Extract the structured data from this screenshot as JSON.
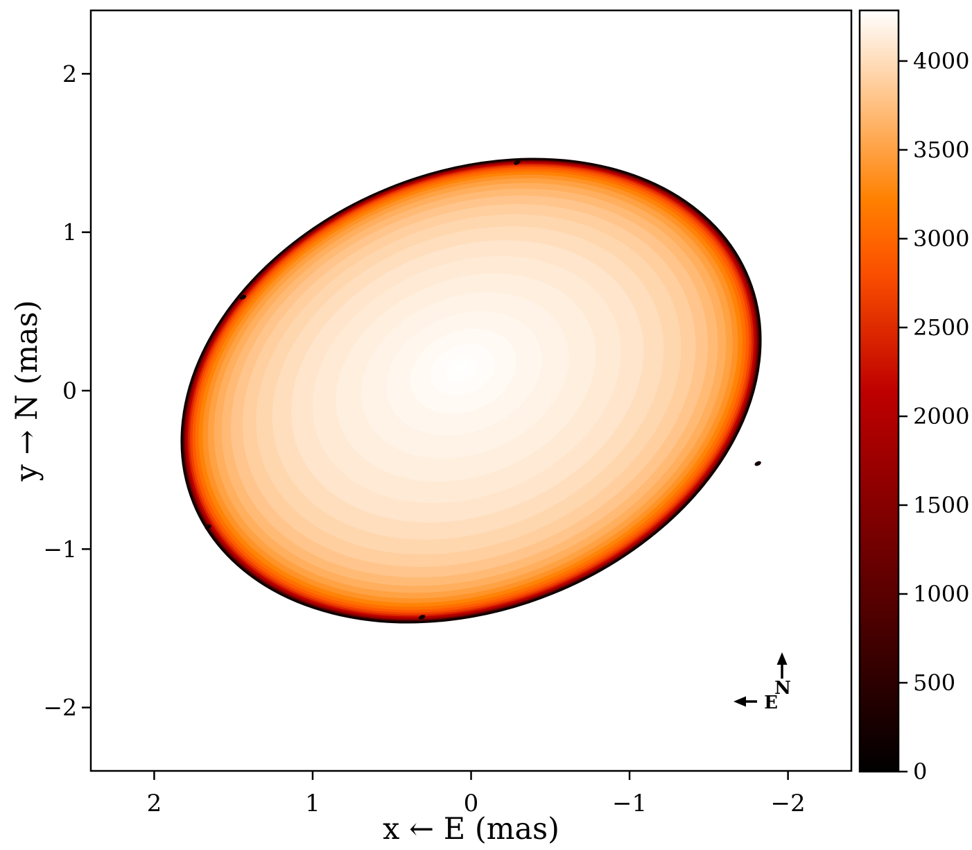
{
  "chart_data": {
    "type": "heatmap",
    "title": "",
    "xlabel": "x ← E (mas)",
    "ylabel": "y → N (mas)",
    "xlim": [
      2.4,
      -2.4
    ],
    "ylim": [
      -2.4,
      2.4
    ],
    "x_axis_inverted": true,
    "grid": false,
    "x_tick_values": [
      2,
      1,
      0,
      -1,
      -2
    ],
    "x_tick_labels": [
      "2",
      "1",
      "0",
      "−1",
      "−2"
    ],
    "y_tick_values": [
      2,
      1,
      0,
      -1,
      -2
    ],
    "y_tick_labels": [
      "2",
      "1",
      "0",
      "−1",
      "−2"
    ],
    "colormap": "gist_heat",
    "colorbar": {
      "position": "right",
      "vmin": 0,
      "vmax": 4285,
      "tick_values": [
        0,
        500,
        1000,
        1500,
        2000,
        2500,
        3000,
        3500,
        4000
      ],
      "tick_labels": [
        "0",
        "500",
        "1000",
        "1500",
        "2000",
        "2500",
        "3000",
        "3500",
        "4000"
      ]
    },
    "stellar_disk": {
      "center_mas": [
        0.0,
        0.0
      ],
      "semi_major_mas": 1.89,
      "semi_minor_mas": 1.38,
      "tilt_deg": 22,
      "peak_value": 4285,
      "edge_value": 0,
      "hotspot_offset_mas": [
        0.06,
        0.15
      ],
      "contour_levels": [
        {
          "value": 100,
          "r": 1.0
        },
        {
          "value": 700,
          "r": 0.9962
        },
        {
          "value": 1300,
          "r": 0.9922
        },
        {
          "value": 1800,
          "r": 0.9878
        },
        {
          "value": 2150,
          "r": 0.9827
        },
        {
          "value": 2450,
          "r": 0.9768
        },
        {
          "value": 2700,
          "r": 0.9698
        },
        {
          "value": 2900,
          "r": 0.9615
        },
        {
          "value": 3080,
          "r": 0.9515
        },
        {
          "value": 3240,
          "r": 0.9394
        },
        {
          "value": 3380,
          "r": 0.9246
        },
        {
          "value": 3500,
          "r": 0.9065
        },
        {
          "value": 3610,
          "r": 0.8843
        },
        {
          "value": 3710,
          "r": 0.857
        },
        {
          "value": 3800,
          "r": 0.824
        },
        {
          "value": 3880,
          "r": 0.783
        },
        {
          "value": 3950,
          "r": 0.734
        },
        {
          "value": 4010,
          "r": 0.676
        },
        {
          "value": 4065,
          "r": 0.609
        },
        {
          "value": 4110,
          "r": 0.533
        },
        {
          "value": 4150,
          "r": 0.449
        },
        {
          "value": 4185,
          "r": 0.359
        },
        {
          "value": 4215,
          "r": 0.268
        },
        {
          "value": 4240,
          "r": 0.183
        },
        {
          "value": 4260,
          "r": 0.111
        },
        {
          "value": 4275,
          "r": 0.058
        },
        {
          "value": 4285,
          "r": 0.022
        }
      ]
    },
    "rim_specks_mas": [
      [
        1.44,
        0.59
      ],
      [
        1.66,
        -0.86
      ],
      [
        0.31,
        -1.43
      ],
      [
        -0.29,
        1.44
      ],
      [
        -1.81,
        -0.46
      ]
    ],
    "compass": {
      "north_label": "N",
      "east_label": "E"
    }
  },
  "colors": {
    "background": "#ffffff",
    "axis": "#000000",
    "text": "#000000",
    "disk_outline": "#0d0000",
    "colorbar_sample_hex": {
      "v4000": "#ffddbb",
      "v3500": "#ffa244",
      "v3000": "#ff6600",
      "v2500": "#df2b00",
      "v2000": "#b30000",
      "v1500": "#860000",
      "v1000": "#590000",
      "v500": "#2d0000",
      "v0": "#000000"
    }
  }
}
